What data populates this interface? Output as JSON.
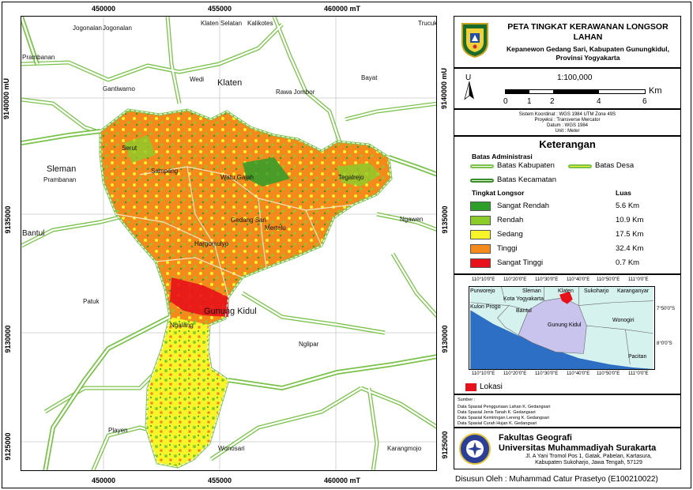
{
  "title": {
    "main": "PETA TINGKAT KERAWANAN LONGSOR LAHAN",
    "subtitle_line1": "Kepanewon Gedang Sari, Kabupaten Gunungkidul,",
    "subtitle_line2": "Provinsi Yogyakarta"
  },
  "map": {
    "x_ticks": [
      "450000",
      "455000",
      "460000 mT"
    ],
    "y_ticks": [
      "9140000 mU",
      "9135000",
      "9130000",
      "9125000"
    ],
    "places": {
      "jogonalan1": "Jogonalan",
      "jogonalan2": "Jogonalan",
      "klaten_selatan": "Klaten Selatan",
      "kalikotes": "Kalikotes",
      "trucuk": "Trucuk",
      "prambanan1": "Prambanan",
      "wedi": "Wedi",
      "klaten": "Klaten",
      "bayat": "Bayat",
      "gantiwarno": "Gantiwarno",
      "rawa_jombor": "Rawa Jombor",
      "sleman": "Sleman",
      "prambanan2": "Prambanan",
      "serut": "Serut",
      "sampang": "Sampang",
      "watu_gajah": "Watu Gajah",
      "tegalrejo": "Tegalrejo",
      "gedang_sari": "Gedang Sari",
      "mertelu": "Mertelu",
      "ngawen": "Ngawen",
      "bantul": "Bantul",
      "hargomulyo": "Hargomulyo",
      "patuk": "Patuk",
      "gunung_kidul": "Gunung Kidul",
      "ngalang": "Ngalang",
      "nglipar": "Nglipar",
      "playen": "Playen",
      "wonosari": "Wonosari",
      "karangmojo": "Karangmojo"
    }
  },
  "scale": {
    "north_label": "U",
    "ratio": "1:100,000",
    "labels": [
      "0",
      "1",
      "2",
      "4",
      "6"
    ],
    "unit": "Km"
  },
  "projection": {
    "line1": "Sistem Koordinat : WGS 1984 UTM Zone 49S",
    "line2": "Proyeksi : Transverse Mercator",
    "line3": "Datum : WGS 1984",
    "line4": "Unit : Meter"
  },
  "legend": {
    "title": "Keterangan",
    "admin_heading": "Batas Administrasi",
    "batas_kabupaten": "Batas Kabupaten",
    "batas_desa": "Batas Desa",
    "batas_kecamatan": "Batas Kecamatan",
    "level_heading": "Tingkat Longsor",
    "area_heading": "Luas",
    "classes": [
      {
        "label": "Sangat Rendah",
        "area": "5.6 Km",
        "color": "#2e9e2a"
      },
      {
        "label": "Rendah",
        "area": "10.9 Km",
        "color": "#8ccc2a"
      },
      {
        "label": "Sedang",
        "area": "17.5 Km",
        "color": "#f5f52a"
      },
      {
        "label": "Tinggi",
        "area": "32.4 Km",
        "color": "#f58a1c"
      },
      {
        "label": "Sangat Tinggi",
        "area": "0.7 Km",
        "color": "#e8101a"
      }
    ]
  },
  "inset": {
    "top_ticks": [
      "110°10'0\"E",
      "110°20'0\"E",
      "110°30'0\"E",
      "110°40'0\"E",
      "110°50'0\"E",
      "111°0'0\"E"
    ],
    "bottom_ticks": [
      "110°10'0\"E",
      "110°20'0\"E",
      "110°30'0\"E",
      "110°40'0\"E",
      "110°50'0\"E",
      "111°0'0\"E"
    ],
    "right_ticks": [
      "7°50'0\"S",
      "8°0'0\"S"
    ],
    "places": {
      "purworejo": "Purworejo",
      "sleman": "Sleman",
      "klaten": "Klaten",
      "sukoharjo": "Sukoharjo",
      "karanganyar": "Karanganyar",
      "kota_yogyakarta": "Kota Yogyakarta",
      "kulon_progo": "Kulon Progo",
      "bantul": "Bantul",
      "gunung_kidul": "Gunung Kidul",
      "wonogiri": "Wonogiri",
      "pacitan": "Pacitan"
    },
    "lokasi": "Lokasi"
  },
  "sources": {
    "heading": "Sumber :",
    "items": [
      "Data Spasial Penggunaan Lahan K. Gedangsari",
      "Data Spasial Jenis Tanah K. Gedangsari",
      "Data Spasial Kemiringan Lereng K. Gedangsari",
      "Data Spasial Curah Hujan K. Gedangsari"
    ]
  },
  "institution": {
    "line1": "Fakultas Geografi",
    "line2": "Universitas Muhammadiyah Surakarta",
    "address1": "Jl. A Yani Tromol Pos 1, Gatak, Pabelan, Kartasura,",
    "address2": "Kabupaten Sukoharjo, Jawa Tengah, 57129"
  },
  "author": "Disusun Oleh : Muhammad Catur Prasetyo (E100210022)"
}
